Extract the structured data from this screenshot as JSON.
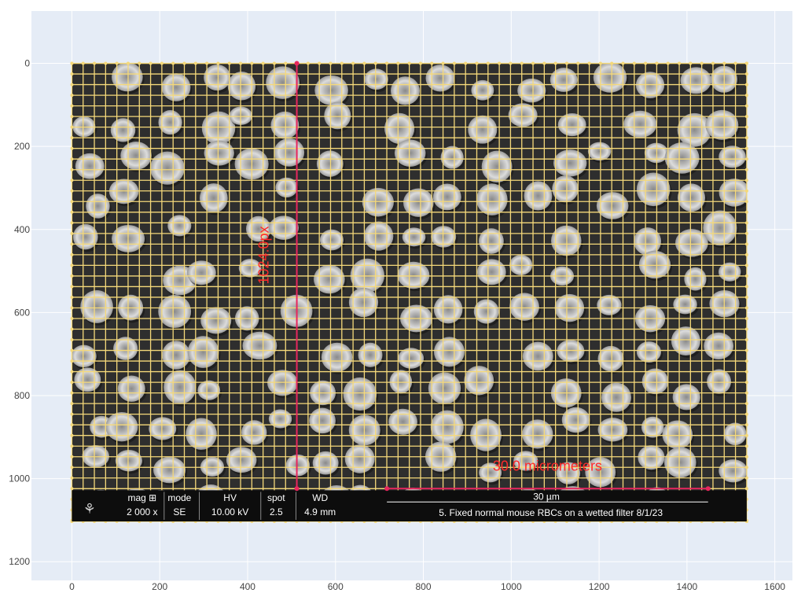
{
  "chart_data": {
    "type": "image-annotation",
    "title": "",
    "xlabel": "",
    "ylabel": "",
    "xlim": [
      -92,
      1640
    ],
    "ylim": [
      1245,
      -126
    ],
    "y_reversed": true,
    "x_ticks": [
      0,
      200,
      400,
      600,
      800,
      1000,
      1200,
      1400,
      1600
    ],
    "y_ticks": [
      0,
      200,
      400,
      600,
      800,
      1000,
      1200
    ],
    "image": {
      "x_range": [
        0,
        1536
      ],
      "y_range": [
        0,
        1103
      ],
      "description_free": true
    },
    "grid_overlay": {
      "color": "#f5d97a",
      "spacing_x": 25.6,
      "spacing_y": 25.6,
      "x_range": [
        0,
        1536
      ],
      "y_range": [
        0,
        1103
      ]
    },
    "annotations": [
      {
        "kind": "vertical-measure",
        "x": 512,
        "y_start": 0,
        "y_end": 1024,
        "label": "1024.0px",
        "color": "#e8265e"
      },
      {
        "kind": "horizontal-measure",
        "y": 1024,
        "x_start": 717,
        "x_end": 1448,
        "label": "30.0 micrometers",
        "color": "#e8265e"
      }
    ],
    "sem_banner": {
      "headers": [
        "mag ⊞",
        "mode",
        "HV",
        "spot",
        "WD"
      ],
      "values": [
        "2 000 x",
        "SE",
        "10.00 kV",
        "2.5",
        "4.9 mm"
      ],
      "scale_label": "30 µm",
      "caption": "5. Fixed normal mouse RBCs on a wetted filter  8/1/23"
    },
    "colors": {
      "plot_bg": "#e5ecf6",
      "grid": "#ffffff",
      "overlay": "#f5d97a",
      "measure": "#e8265e",
      "scale_text": "#ff2a2a"
    }
  }
}
